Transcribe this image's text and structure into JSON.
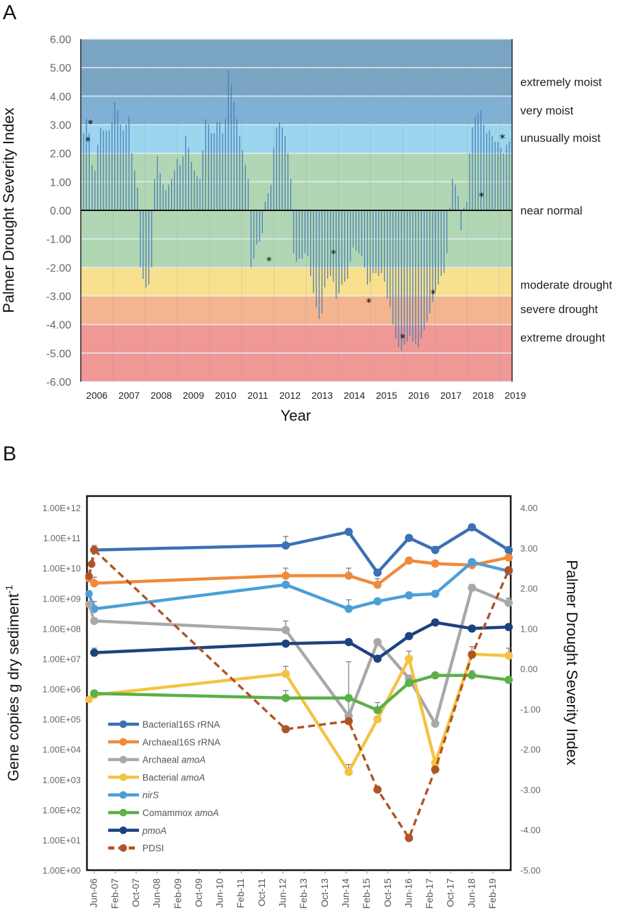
{
  "chart_data": [
    {
      "panel": "A",
      "type": "bar",
      "title": "",
      "xlabel": "Year",
      "ylabel": "Palmer Drought Severity Index",
      "ylim": [
        -6,
        6
      ],
      "yticks": [
        "6.00",
        "5.00",
        "4.00",
        "3.00",
        "2.00",
        "1.00",
        "0.00",
        "-1.00",
        "-2.00",
        "-3.00",
        "-4.00",
        "-5.00",
        "-6.00"
      ],
      "ytick_values": [
        6,
        5,
        4,
        3,
        2,
        1,
        0,
        -1,
        -2,
        -3,
        -4,
        -5,
        -6
      ],
      "year_labels": [
        "2006",
        "2007",
        "2008",
        "2009",
        "2010",
        "2011",
        "2012",
        "2013",
        "2014",
        "2015",
        "2016",
        "2017",
        "2018",
        "2019"
      ],
      "x_start": 2006.0,
      "x_end": 2019.4,
      "bar_color": "#4a7fb8",
      "bands": [
        {
          "label": "extremely moist",
          "from": 4,
          "to": 6,
          "color": "#79a5c3"
        },
        {
          "label": "very moist",
          "from": 3,
          "to": 4,
          "color": "#80b0d4"
        },
        {
          "label": "unusually moist",
          "from": 2,
          "to": 3,
          "color": "#9bd5ee"
        },
        {
          "label": "near normal",
          "from": -2,
          "to": 2,
          "color": "#b1d6b4"
        },
        {
          "label": "moderate drought",
          "from": -3,
          "to": -2,
          "color": "#f8e08e"
        },
        {
          "label": "severe drought",
          "from": -4,
          "to": -3,
          "color": "#f3b58e"
        },
        {
          "label": "extreme drought",
          "from": -6,
          "to": -4,
          "color": "#ef9896"
        }
      ],
      "category_labels": [
        {
          "text": "extremely moist",
          "y": 4.5
        },
        {
          "text": "very moist",
          "y": 3.5
        },
        {
          "text": "unusually moist",
          "y": 2.55
        },
        {
          "text": "near normal",
          "y": 0.0
        },
        {
          "text": "moderate drought",
          "y": -2.6
        },
        {
          "text": "severe drought",
          "y": -3.45
        },
        {
          "text": "extreme drought",
          "y": -4.45
        }
      ],
      "monthly_values": [
        2.7,
        3.2,
        2.7,
        1.6,
        1.4,
        2.3,
        2.9,
        2.8,
        2.8,
        2.8,
        3.1,
        3.8,
        3.5,
        3.0,
        2.8,
        3.0,
        3.3,
        2.0,
        1.4,
        0.8,
        -2.0,
        -2.4,
        -2.7,
        -2.6,
        -2.0,
        1.1,
        1.9,
        1.3,
        0.9,
        0.7,
        0.9,
        1.1,
        1.4,
        1.8,
        1.6,
        1.9,
        2.6,
        2.2,
        1.7,
        1.4,
        1.2,
        1.1,
        2.1,
        3.2,
        3.0,
        2.7,
        2.7,
        3.1,
        3.1,
        2.7,
        3.2,
        4.9,
        4.4,
        3.8,
        3.2,
        2.6,
        2.1,
        1.6,
        1.1,
        -2.0,
        -1.7,
        -1.2,
        -1.1,
        -0.8,
        0.3,
        0.6,
        0.9,
        2.2,
        2.9,
        3.1,
        2.9,
        2.6,
        2.0,
        1.1,
        -1.5,
        -1.8,
        -1.7,
        -1.7,
        -1.5,
        -1.6,
        -2.3,
        -2.9,
        -3.4,
        -3.8,
        -3.6,
        -2.7,
        -2.4,
        -2.3,
        -2.5,
        -3.1,
        -2.9,
        -2.6,
        -2.5,
        -2.4,
        -1.8,
        -1.3,
        -1.4,
        -1.5,
        -1.6,
        -2.0,
        -2.6,
        -2.5,
        -2.2,
        -2.2,
        -2.3,
        -2.2,
        -2.5,
        -3.1,
        -3.4,
        -4.0,
        -4.5,
        -4.8,
        -4.9,
        -4.7,
        -4.6,
        -4.4,
        -4.6,
        -4.7,
        -4.8,
        -4.5,
        -4.2,
        -3.9,
        -3.6,
        -3.2,
        -2.8,
        -2.6,
        -2.3,
        -2.2,
        -1.5,
        0.1,
        1.1,
        0.9,
        0.5,
        -0.7,
        0.1,
        0.3,
        2.0,
        2.9,
        3.3,
        3.4,
        3.5,
        3.0,
        2.7,
        2.8,
        2.6,
        2.4,
        2.4,
        2.2,
        2.0,
        2.3,
        2.4
      ],
      "sampling_markers": [
        {
          "x": 2006.22,
          "y": 2.45
        },
        {
          "x": 2006.3,
          "y": 3.05
        },
        {
          "x": 2011.85,
          "y": -1.75
        },
        {
          "x": 2013.85,
          "y": -1.5
        },
        {
          "x": 2014.95,
          "y": -3.2
        },
        {
          "x": 2016.0,
          "y": -4.45
        },
        {
          "x": 2016.95,
          "y": -2.9
        },
        {
          "x": 2018.45,
          "y": 0.5
        },
        {
          "x": 2019.1,
          "y": 2.55
        }
      ],
      "grid": true,
      "legend": "none"
    },
    {
      "panel": "B",
      "type": "line",
      "title": "",
      "xlabel": "",
      "ylabel": "Gene copies g dry sediment",
      "ylabel_superscript": "-1",
      "y2label": "Palmer Drought Severity Index",
      "yscale": "log",
      "ylim": [
        0,
        12
      ],
      "yticks": [
        "1.00E+12",
        "1.00E+11",
        "1.00E+10",
        "1.00E+09",
        "1.00E+08",
        "1.00E+07",
        "1.00E+06",
        "1.00E+05",
        "1.00E+04",
        "1.00E+03",
        "1.00E+02",
        "1.00E+01",
        "1.00E+00"
      ],
      "ytick_exponents": [
        12,
        11,
        10,
        9,
        8,
        7,
        6,
        5,
        4,
        3,
        2,
        1,
        0
      ],
      "y2lim": [
        -5,
        4
      ],
      "y2ticks": [
        "4.00",
        "3.00",
        "2.00",
        "1.00",
        "0.00",
        "-1.00",
        "-2.00",
        "-3.00",
        "-4.00",
        "-5.00"
      ],
      "y2tick_values": [
        4,
        3,
        2,
        1,
        0,
        -1,
        -2,
        -3,
        -4,
        -5
      ],
      "x_month_range": [
        0,
        168
      ],
      "xtick_labels": [
        "Jun-06",
        "Feb-07",
        "Oct-07",
        "Jun-08",
        "Feb-09",
        "Oct-09",
        "Jun-10",
        "Feb-11",
        "Oct-11",
        "Jun-12",
        "Feb-13",
        "Oct-13",
        "Jun-14",
        "Feb-15",
        "Oct-15",
        "Jun-16",
        "Feb-17",
        "Oct-17",
        "Jun-18",
        "Feb-19"
      ],
      "xtick_months": [
        5,
        13,
        21,
        29,
        37,
        45,
        53,
        61,
        69,
        77,
        85,
        93,
        101,
        109,
        117,
        125,
        133,
        141,
        149,
        157
      ],
      "sample_months": [
        5,
        78,
        102,
        113,
        125,
        135,
        149,
        163
      ],
      "series": [
        {
          "name": "Bacterial16S rRNA",
          "italic_part": "",
          "color": "#3c6fb5",
          "dashed": false,
          "axis": "left",
          "log10_values": [
            10.6,
            10.75,
            11.2,
            9.85,
            11.0,
            10.6,
            11.35,
            10.6
          ],
          "log10_error_top": [
            10.75,
            11.05,
            11.2,
            9.85,
            11.0,
            10.72,
            11.45,
            10.6
          ]
        },
        {
          "name": "Archaeal16S rRNA",
          "italic_part": "",
          "color": "#f08a3c",
          "dashed": false,
          "axis": "left",
          "log10_values": [
            9.5,
            9.75,
            9.75,
            9.45,
            10.25,
            10.15,
            10.1,
            10.35
          ],
          "log10_error_top": [
            9.7,
            10.0,
            10.0,
            9.65,
            10.35,
            10.15,
            10.1,
            10.4
          ],
          "extra_points": [
            {
              "month": 3,
              "value": 9.65
            }
          ]
        },
        {
          "name": "Archaeal amoA",
          "italic_part": "amoA",
          "color": "#a8a8a8",
          "dashed": false,
          "axis": "left",
          "log10_values": [
            8.25,
            7.95,
            5.1,
            7.55,
            6.35,
            4.85,
            9.35,
            8.85
          ],
          "log10_error_top": [
            8.35,
            8.25,
            6.9,
            7.6,
            6.35,
            4.85,
            9.45,
            9.0
          ],
          "extra_points": [
            {
              "month": 3,
              "value": 8.8
            }
          ]
        },
        {
          "name": "Bacterial amoA",
          "italic_part": "amoA",
          "color": "#f5c342",
          "dashed": false,
          "axis": "left",
          "log10_values": [
            5.8,
            6.5,
            3.25,
            5.0,
            7.0,
            3.55,
            7.15,
            7.1
          ],
          "log10_error_top": [
            5.8,
            6.75,
            3.5,
            5.05,
            7.25,
            3.55,
            7.4,
            7.35
          ],
          "extra_points": [
            {
              "month": 3,
              "value": 5.65
            }
          ]
        },
        {
          "name": "nirS",
          "italic_part": "nirS",
          "color": "#4a9fd8",
          "dashed": false,
          "axis": "left",
          "log10_values": [
            8.65,
            9.45,
            8.65,
            8.9,
            9.1,
            9.15,
            10.2,
            9.9
          ],
          "log10_error_top": [
            8.9,
            9.45,
            8.95,
            8.95,
            9.1,
            9.15,
            10.3,
            9.9
          ],
          "extra_points": [
            {
              "month": 3,
              "value": 9.15
            }
          ]
        },
        {
          "name": "Comammox amoA",
          "italic_part": "amoA",
          "color": "#5bb047",
          "dashed": false,
          "axis": "left",
          "log10_values": [
            5.85,
            5.7,
            5.7,
            5.3,
            6.2,
            6.45,
            6.45,
            6.3
          ],
          "log10_error_top": [
            5.95,
            5.95,
            5.7,
            5.55,
            6.2,
            6.45,
            6.6,
            6.3
          ]
        },
        {
          "name": "pmoA",
          "italic_part": "pmoA",
          "color": "#1d437e",
          "dashed": false,
          "axis": "left",
          "log10_values": [
            7.2,
            7.5,
            7.55,
            7.0,
            7.75,
            8.2,
            8.0,
            8.05
          ],
          "log10_error_top": [
            7.35,
            7.6,
            7.65,
            7.1,
            7.85,
            8.3,
            8.1,
            8.15
          ]
        },
        {
          "name": "PDSI",
          "italic_part": "",
          "color": "#b05428",
          "dashed": true,
          "axis": "right",
          "values": [
            2.95,
            -1.5,
            -1.3,
            -3.0,
            -4.2,
            -2.5,
            0.35,
            2.45
          ],
          "extra_points": [
            {
              "month": 3,
              "value": 2.3
            },
            {
              "month": 4,
              "value": 2.6
            }
          ]
        }
      ],
      "legend": "lower-left",
      "grid": false
    }
  ],
  "panels": {
    "a_label": "A",
    "b_label": "B"
  }
}
